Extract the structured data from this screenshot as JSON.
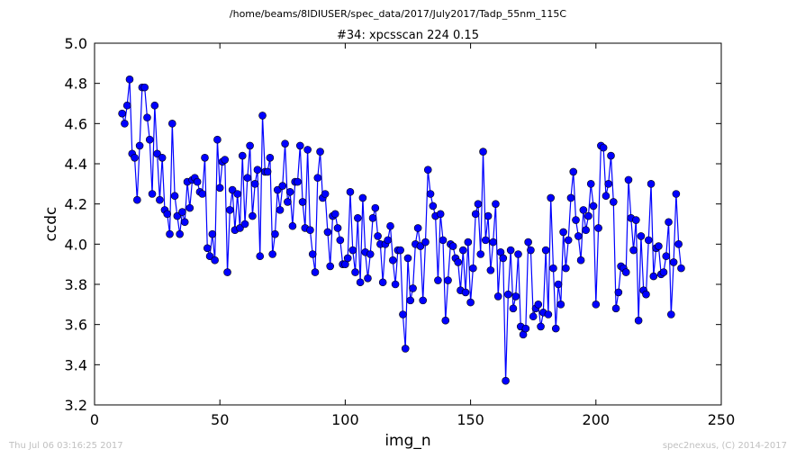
{
  "chart_data": {
    "type": "line",
    "suptitle": "/home/beams/8IDIUSER/spec_data/2017/July2017/Tadp_55nm_115C",
    "title": "#34: xpcsscan 224 0.15",
    "xlabel": "img_n",
    "ylabel": "ccdc",
    "xlim": [
      0,
      250
    ],
    "ylim": [
      3.2,
      5.0
    ],
    "xticks": [
      0,
      50,
      100,
      150,
      200,
      250
    ],
    "yticks": [
      3.2,
      3.4,
      3.6,
      3.8,
      4.0,
      4.2,
      4.4,
      4.6,
      4.8,
      5.0
    ],
    "grid": false,
    "line_color": "#0000ff",
    "marker": "circle",
    "series": [
      {
        "start_x": 11,
        "y": [
          4.65,
          4.6,
          4.69,
          4.82,
          4.45,
          4.43,
          4.22,
          4.49,
          4.78,
          4.78,
          4.63,
          4.52,
          4.25,
          4.69,
          4.45,
          4.22,
          4.43,
          4.17,
          4.15,
          4.05,
          4.6,
          4.24,
          4.14,
          4.05,
          4.16,
          4.11,
          4.31,
          4.18,
          4.32,
          4.33,
          4.31,
          4.26,
          4.25,
          4.43,
          3.98,
          3.94,
          4.05,
          3.92,
          4.52,
          4.28,
          4.41,
          4.42,
          3.86,
          4.17,
          4.27,
          4.07,
          4.25,
          4.08,
          4.44,
          4.1,
          4.33,
          4.49,
          4.14,
          4.3,
          4.37,
          3.94,
          4.64,
          4.36,
          4.36,
          4.43,
          3.95,
          4.05,
          4.27,
          4.17,
          4.29,
          4.5,
          4.21,
          4.26,
          4.09,
          4.31,
          4.31,
          4.49,
          4.21,
          4.08,
          4.47,
          4.07,
          3.95,
          3.86,
          4.33,
          4.46,
          4.23,
          4.25,
          4.06,
          3.89,
          4.14,
          4.15,
          4.08,
          4.02,
          3.9,
          3.9,
          3.93,
          4.26,
          3.97,
          3.86,
          4.13,
          3.81,
          4.23,
          3.96,
          3.83,
          3.95,
          4.13,
          4.18,
          4.04,
          4.0,
          3.81,
          4.0,
          4.02,
          4.09,
          3.92,
          3.8,
          3.97,
          3.97,
          3.65,
          3.48,
          3.93,
          3.72,
          3.78,
          4.0,
          4.08,
          3.99,
          3.72,
          4.01,
          4.37,
          4.25,
          4.19,
          4.14,
          3.82,
          4.15,
          4.02,
          3.62,
          3.82,
          4.0,
          3.99,
          3.93,
          3.91,
          3.77,
          3.97,
          3.76,
          4.01,
          3.71,
          3.88,
          4.15,
          4.2,
          3.95,
          4.46,
          4.02,
          4.14,
          3.87,
          4.01,
          4.2,
          3.74,
          3.96,
          3.93,
          3.32,
          3.75,
          3.97,
          3.68,
          3.74,
          3.95,
          3.59,
          3.55,
          3.58,
          4.01,
          3.97,
          3.64,
          3.68,
          3.7,
          3.59,
          3.66,
          3.97,
          3.65,
          4.23,
          3.88,
          3.58,
          3.8,
          3.7,
          4.06,
          3.88,
          4.02,
          4.23,
          4.36,
          4.12,
          4.04,
          3.92,
          4.17,
          4.07,
          4.14,
          4.3,
          4.19,
          3.7,
          4.08,
          4.49,
          4.48,
          4.24,
          4.3,
          4.44,
          4.21,
          3.68,
          3.76,
          3.89,
          3.88,
          3.86,
          4.32,
          4.13,
          3.97,
          4.12,
          3.62,
          4.04,
          3.77,
          3.75,
          4.02,
          4.3,
          3.84,
          3.98,
          3.99,
          3.85,
          3.86,
          3.94,
          4.11,
          3.65,
          3.91,
          4.25,
          4.0,
          3.88
        ]
      }
    ]
  },
  "footer": {
    "timestamp": "Thu Jul 06 03:16:25 2017",
    "credit": "spec2nexus, (C) 2014-2017"
  }
}
